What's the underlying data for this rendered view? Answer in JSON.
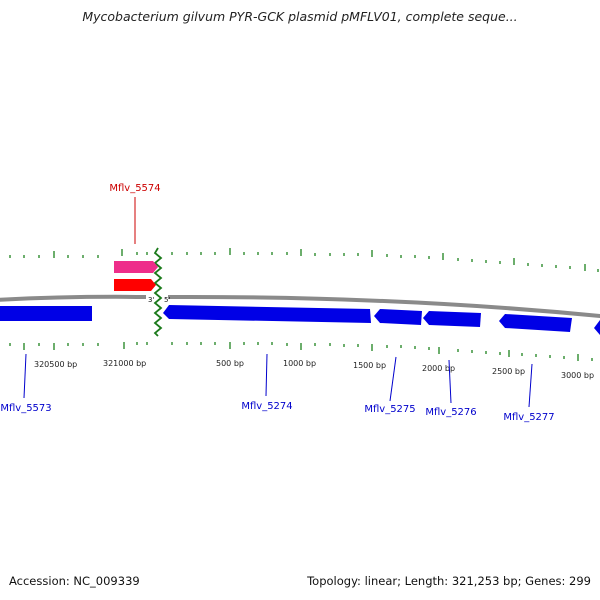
{
  "title": "Mycobacterium gilvum PYR-GCK plasmid pMFLV01, complete seque...",
  "footer": {
    "accession": "Accession: NC_009339",
    "summary": "Topology: linear; Length: 321,253 bp; Genes: 299"
  },
  "colors": {
    "backbone": "#8a8a8a",
    "minus_strand_gene": "#0000e6",
    "plus_strand_gene": "#ff0000",
    "plus_strand_feature": "#ee2e8a",
    "highlight_label": "#cc0000",
    "label": "#0000cc",
    "tick": "#2e8b2e",
    "end_marker": "#1b7a1b"
  },
  "end_markers": {
    "three_prime": "3'",
    "five_prime": "5'"
  },
  "scale_labels": [
    "320500 bp",
    "321000 bp",
    "500 bp",
    "1000 bp",
    "1500 bp",
    "2000 bp",
    "2500 bp",
    "3000 bp"
  ],
  "genes": [
    {
      "label": "Mflv_5573",
      "strand": "minus",
      "color": "minus_strand_gene"
    },
    {
      "label": "Mflv_5574",
      "strand": "plus",
      "color": "plus_strand_gene",
      "highlight": true
    },
    {
      "label": "Mflv_5274",
      "strand": "minus",
      "color": "minus_strand_gene"
    },
    {
      "label": "Mflv_5275",
      "strand": "minus",
      "color": "minus_strand_gene"
    },
    {
      "label": "Mflv_5276",
      "strand": "minus",
      "color": "minus_strand_gene"
    },
    {
      "label": "Mflv_5277",
      "strand": "minus",
      "color": "minus_strand_gene"
    }
  ]
}
